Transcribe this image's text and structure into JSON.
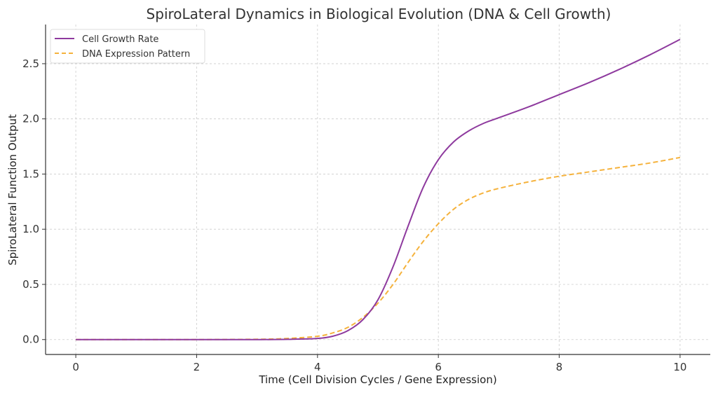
{
  "chart_data": {
    "type": "line",
    "title": "SpiroLateral Dynamics in Biological Evolution (DNA & Cell Growth)",
    "xlabel": "Time (Cell Division Cycles / Gene Expression)",
    "ylabel": "SpiroLateral Function Output",
    "xlim": [
      -0.5,
      10.5
    ],
    "ylim": [
      -0.135,
      2.855
    ],
    "xticks": [
      0,
      2,
      4,
      6,
      8,
      10
    ],
    "xtick_labels": [
      "0",
      "2",
      "4",
      "6",
      "8",
      "10"
    ],
    "yticks": [
      0.0,
      0.5,
      1.0,
      1.5,
      2.0,
      2.5
    ],
    "ytick_labels": [
      "0.0",
      "0.5",
      "1.0",
      "1.5",
      "2.0",
      "2.5"
    ],
    "grid": true,
    "legend_position": "top-left",
    "x": [
      0,
      1,
      2,
      3,
      3.5,
      4,
      4.25,
      4.5,
      4.75,
      5,
      5.25,
      5.5,
      5.75,
      6,
      6.25,
      6.5,
      6.75,
      7,
      7.5,
      8,
      8.5,
      9,
      9.5,
      10
    ],
    "series": [
      {
        "name": "Cell Growth Rate",
        "color": "#8e3a9e",
        "style": "solid",
        "values": [
          0,
          0,
          0,
          0,
          0.002,
          0.01,
          0.03,
          0.08,
          0.18,
          0.36,
          0.66,
          1.03,
          1.38,
          1.63,
          1.79,
          1.89,
          1.96,
          2.01,
          2.11,
          2.22,
          2.33,
          2.45,
          2.58,
          2.72
        ]
      },
      {
        "name": "DNA Expression Pattern",
        "color": "#f5b23c",
        "style": "dashed",
        "values": [
          0,
          0,
          0,
          0.003,
          0.01,
          0.03,
          0.06,
          0.11,
          0.2,
          0.33,
          0.5,
          0.7,
          0.89,
          1.05,
          1.18,
          1.27,
          1.33,
          1.37,
          1.43,
          1.48,
          1.52,
          1.56,
          1.6,
          1.65
        ]
      }
    ]
  }
}
